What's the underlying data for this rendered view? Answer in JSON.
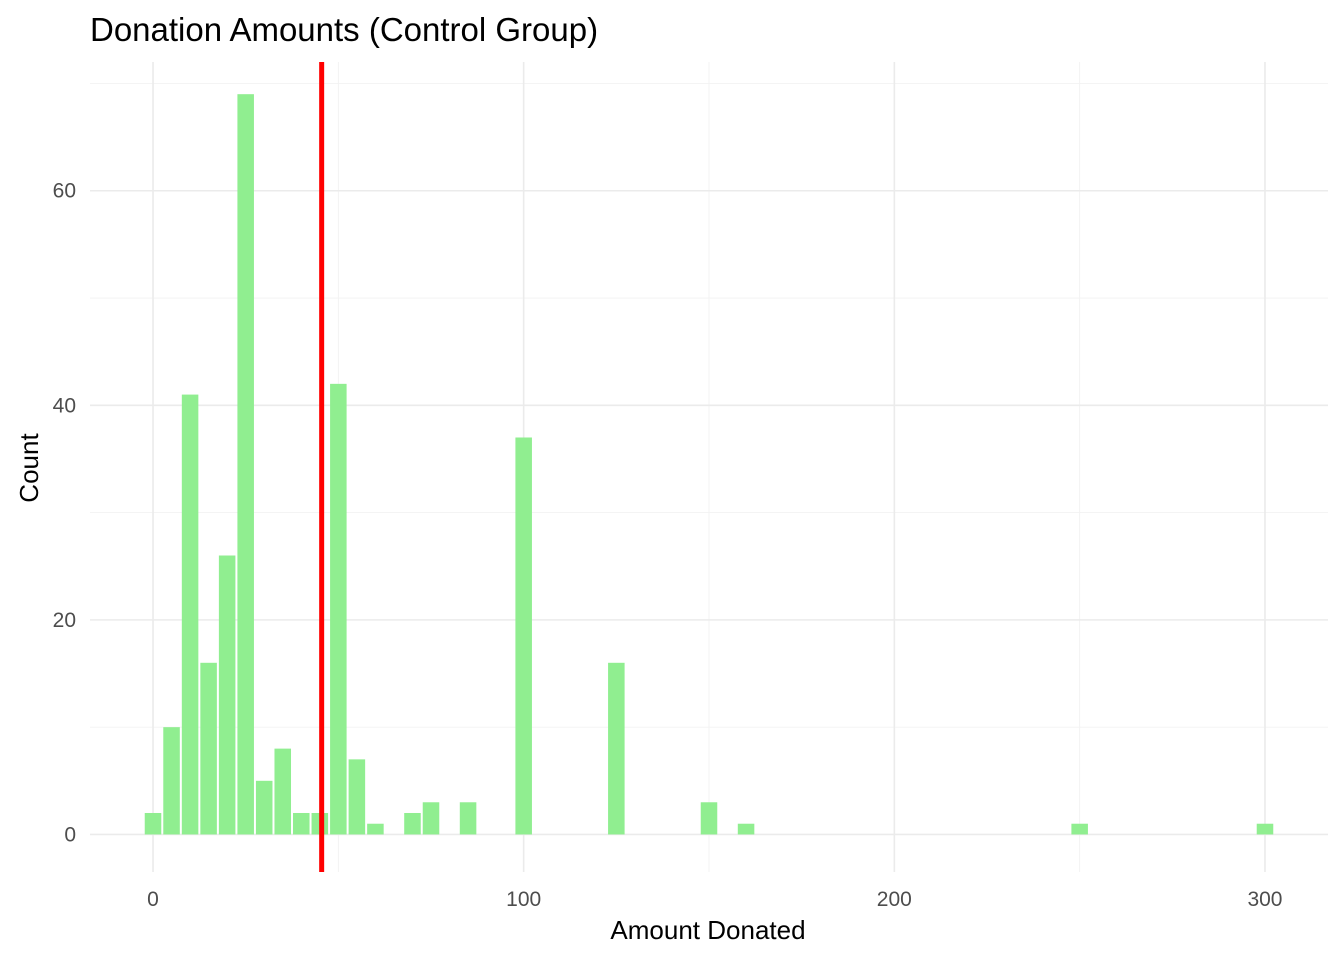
{
  "chart_data": {
    "type": "bar",
    "title": "Donation Amounts (Control Group)",
    "xlabel": "Amount Donated",
    "ylabel": "Count",
    "xlim": [
      -17,
      317
    ],
    "ylim": [
      -3.5,
      72
    ],
    "x_ticks": [
      0,
      100,
      200,
      300
    ],
    "y_ticks": [
      0,
      20,
      40,
      60
    ],
    "bin_width": 5,
    "bins": [
      {
        "x": 0,
        "count": 2
      },
      {
        "x": 5,
        "count": 10
      },
      {
        "x": 10,
        "count": 41
      },
      {
        "x": 15,
        "count": 16
      },
      {
        "x": 20,
        "count": 26
      },
      {
        "x": 25,
        "count": 69
      },
      {
        "x": 30,
        "count": 5
      },
      {
        "x": 35,
        "count": 8
      },
      {
        "x": 40,
        "count": 2
      },
      {
        "x": 45,
        "count": 2
      },
      {
        "x": 50,
        "count": 42
      },
      {
        "x": 55,
        "count": 7
      },
      {
        "x": 60,
        "count": 1
      },
      {
        "x": 70,
        "count": 2
      },
      {
        "x": 75,
        "count": 3
      },
      {
        "x": 85,
        "count": 3
      },
      {
        "x": 100,
        "count": 37
      },
      {
        "x": 125,
        "count": 16
      },
      {
        "x": 150,
        "count": 3
      },
      {
        "x": 160,
        "count": 1
      },
      {
        "x": 250,
        "count": 1
      },
      {
        "x": 300,
        "count": 1
      }
    ],
    "reference_line": {
      "x": 45.5,
      "color": "#ff0000"
    },
    "bar_color": "#90ee90",
    "grid": true,
    "legend": "none"
  }
}
